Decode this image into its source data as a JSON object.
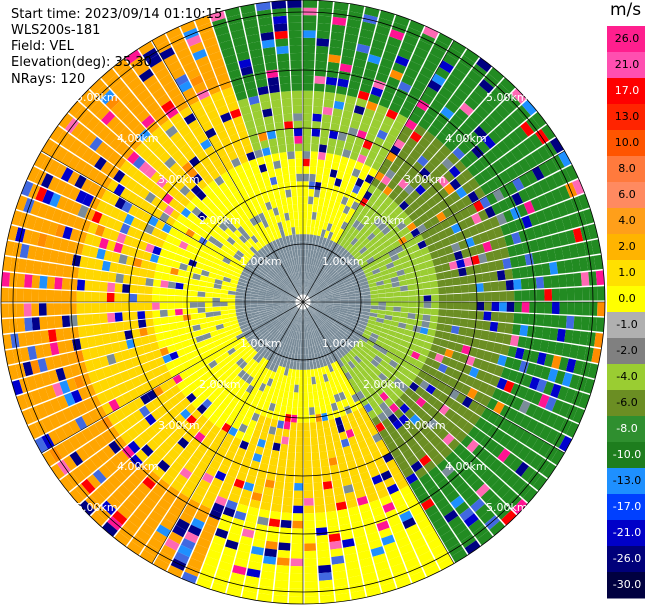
{
  "info": {
    "start_time": "Start time: 2023/09/14 01:10:15",
    "instrument": "WLS200s-181",
    "field": "Field: VEL",
    "elevation": "Elevation(deg): 35.30",
    "nrays": "NRays: 120"
  },
  "colorbar": {
    "unit": "m/s",
    "labels": [
      "26.0",
      "21.0",
      "17.0",
      "13.0",
      "10.0",
      "8.0",
      "6.0",
      "4.0",
      "2.0",
      "1.0",
      "0.0",
      "-1.0",
      "-2.0",
      "-4.0",
      "-6.0",
      "-8.0",
      "-10.0",
      "-13.0",
      "-17.0",
      "-21.0",
      "-26.0",
      "-30.0"
    ],
    "colors": [
      "#ff1f8e",
      "#ff4fb0",
      "#ff0000",
      "#ff2400",
      "#ff5500",
      "#ff7a3d",
      "#ff8a60",
      "#ff9f1a",
      "#ffb400",
      "#ffe000",
      "#ffff00",
      "#b0b0b0",
      "#808080",
      "#9acd32",
      "#6b8e23",
      "#2f8f2f",
      "#1e7d1e",
      "#1e90ff",
      "#0040ff",
      "#0000c8",
      "#00007a",
      "#000040"
    ]
  },
  "chart_data": {
    "type": "ppi_polar",
    "title": "Start time: 2023/09/14 01:10:15",
    "field": "VEL",
    "units": "m/s",
    "elevation_deg": 35.3,
    "n_rays": 120,
    "range_ring_labels_km": [
      "1.00km",
      "2.00km",
      "3.00km",
      "4.00km",
      "5.00km"
    ],
    "range_rings_km": [
      1,
      2,
      3,
      4,
      5
    ],
    "max_range_km": 5.5,
    "colorbar_min": -30.0,
    "colorbar_max": 26.0
  }
}
